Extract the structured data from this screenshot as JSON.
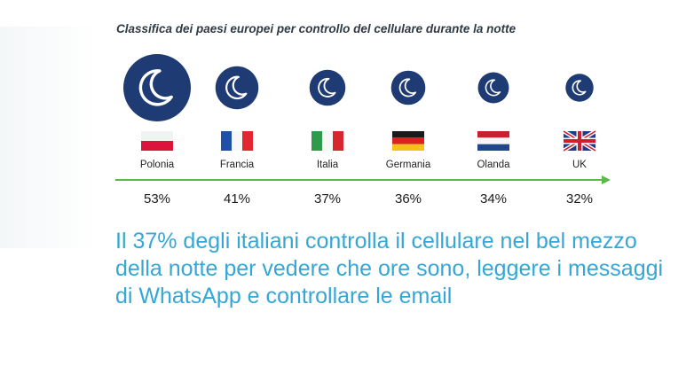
{
  "colors": {
    "circle": "#1f3b73",
    "moon": "#ffffff",
    "arrow": "#5cb84a",
    "caption": "#34a7d6",
    "title": "#2f3a45"
  },
  "chart_data": {
    "type": "bubble",
    "title": "Classifica dei paesi europei per controllo del cellulare durante la notte",
    "categories": [
      "Polonia",
      "Francia",
      "Italia",
      "Germania",
      "Olanda",
      "UK"
    ],
    "values": [
      53,
      41,
      37,
      36,
      34,
      32
    ],
    "value_labels": [
      "53%",
      "41%",
      "37%",
      "36%",
      "34%",
      "32%"
    ],
    "flags": [
      "flag-poland",
      "flag-france",
      "flag-italy",
      "flag-germany",
      "flag-netherlands",
      "flag-uk"
    ],
    "icon": "moon-icon",
    "unit": "%"
  },
  "caption": "Il 37% degli italiani controlla il cellulare nel bel mezzo della notte per vedere che ore sono, leggere i messaggi di WhatsApp e controllare le email"
}
